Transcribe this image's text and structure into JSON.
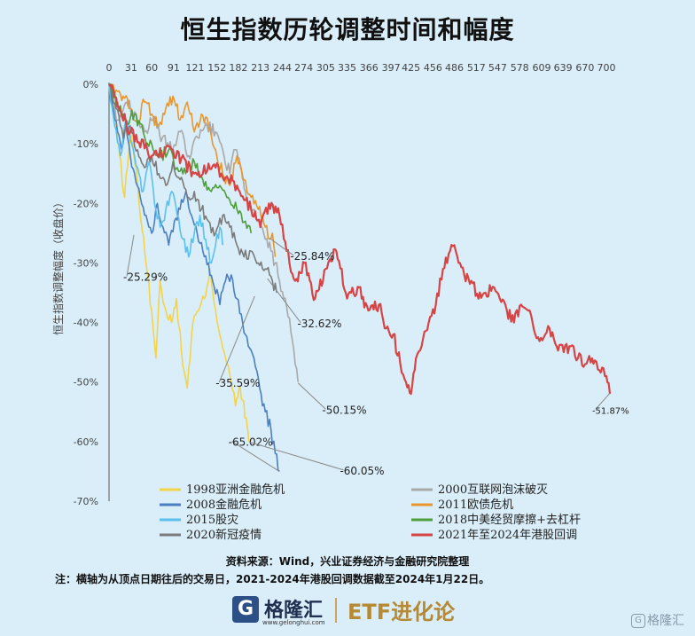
{
  "title": "恒生指数历轮调整时间和幅度",
  "source_text": "资料来源：Wind，兴业证券经济与金融研究院整理",
  "note_text": "注：横轴为从顶点日期往后的交易日，2021-2024年港股回调数据截至2024年1月22日。",
  "footer": {
    "logo_letter": "G",
    "logo_name": "格隆汇",
    "logo_url": "www.gelonghui.com",
    "brand": "ETF进化论",
    "watermark_icon": "G",
    "watermark": "格隆汇"
  },
  "chart_data": {
    "type": "line",
    "title": "恒生指数历轮调整时间和幅度",
    "xlabel": "",
    "ylabel": "恒生指数调整幅度（收盘价）",
    "x_ticks": [
      0,
      31,
      60,
      91,
      121,
      152,
      182,
      213,
      244,
      274,
      305,
      335,
      366,
      397,
      425,
      456,
      486,
      517,
      547,
      578,
      609,
      639,
      670,
      700
    ],
    "y_ticks": [
      0,
      -10,
      -20,
      -30,
      -40,
      -50,
      -60,
      -70
    ],
    "y_tick_labels": [
      "0%",
      "-10%",
      "-20%",
      "-30%",
      "-40%",
      "-50%",
      "-60%",
      "-70%"
    ],
    "xlim": [
      0,
      720
    ],
    "ylim": [
      -70,
      0
    ],
    "grid": false,
    "legend_position": "bottom",
    "series": [
      {
        "name": "1998亚洲金融危机",
        "color": "#f2d34a",
        "x": [
          0,
          8,
          15,
          22,
          30,
          38,
          45,
          52,
          60,
          66,
          72,
          80,
          88,
          95,
          102,
          110,
          118,
          126,
          134,
          142,
          150,
          158,
          166,
          172,
          178,
          183,
          188,
          193,
          197
        ],
        "y": [
          0,
          -5,
          -12,
          -19,
          -8,
          -14,
          -23,
          -30,
          -38,
          -46,
          -33,
          -38,
          -40,
          -36,
          -45,
          -51,
          -40,
          -38,
          -36,
          -31,
          -38,
          -43,
          -47,
          -50,
          -54,
          -51,
          -53,
          -56,
          -60
        ]
      },
      {
        "name": "2000互联网泡沫破灭",
        "color": "#a8a8a8",
        "x": [
          0,
          12,
          25,
          38,
          50,
          62,
          75,
          88,
          100,
          112,
          125,
          138,
          150,
          160,
          170,
          178,
          185,
          192,
          200,
          210,
          220,
          228,
          234,
          240,
          246,
          252,
          258,
          262,
          266
        ],
        "y": [
          0,
          -6,
          -3,
          -5,
          -8,
          -6,
          -9,
          -11,
          -8,
          -12,
          -9,
          -7,
          -8,
          -11,
          -15,
          -11,
          -14,
          -18,
          -21,
          -23,
          -26,
          -28,
          -30,
          -33,
          -36,
          -39,
          -43,
          -47,
          -50
        ]
      },
      {
        "name": "2008金融危机",
        "color": "#4a7fc1",
        "x": [
          0,
          6,
          12,
          18,
          24,
          30,
          36,
          44,
          52,
          60,
          68,
          76,
          84,
          92,
          100,
          108,
          116,
          124,
          132,
          140,
          148,
          156,
          164,
          172,
          180,
          188,
          196,
          204,
          212,
          220,
          228,
          234,
          240
        ],
        "y": [
          0,
          -4,
          -8,
          -11,
          -6,
          -12,
          -15,
          -19,
          -22,
          -25,
          -20,
          -24,
          -27,
          -23,
          -21,
          -18,
          -22,
          -25,
          -28,
          -30,
          -34,
          -37,
          -33,
          -32,
          -36,
          -40,
          -44,
          -46,
          -51,
          -55,
          -58,
          -62,
          -65
        ]
      },
      {
        "name": "2011欧债危机",
        "color": "#e8962d",
        "x": [
          0,
          10,
          20,
          30,
          40,
          50,
          60,
          70,
          80,
          90,
          100,
          110,
          120,
          130,
          140,
          150,
          160,
          170,
          180,
          190,
          200,
          210,
          220,
          226,
          230,
          234
        ],
        "y": [
          0,
          -1,
          -2,
          -4,
          -6,
          -3,
          -5,
          -7,
          -4,
          -2,
          -6,
          -3,
          -8,
          -5,
          -7,
          -11,
          -15,
          -17,
          -12,
          -16,
          -19,
          -21,
          -24,
          -26,
          -25,
          -29
        ]
      },
      {
        "name": "2015股灾",
        "color": "#5ac0ee",
        "x": [
          0,
          8,
          16,
          24,
          32,
          40,
          48,
          56,
          64,
          72,
          80,
          88,
          96,
          104,
          112,
          120,
          128,
          136,
          144,
          150,
          156,
          160
        ],
        "y": [
          0,
          -7,
          -12,
          -6,
          -10,
          -14,
          -18,
          -13,
          -20,
          -24,
          -21,
          -18,
          -22,
          -26,
          -29,
          -25,
          -22,
          -26,
          -30,
          -27,
          -24,
          -27
        ]
      },
      {
        "name": "2018中美经贸摩擦+去杠杆",
        "color": "#4e9e3a",
        "x": [
          0,
          12,
          24,
          36,
          48,
          60,
          72,
          84,
          96,
          108,
          120,
          132,
          144,
          156,
          168,
          180,
          192,
          200
        ],
        "y": [
          0,
          -3,
          -6,
          -5,
          -8,
          -10,
          -12,
          -11,
          -14,
          -15,
          -13,
          -16,
          -18,
          -17,
          -19,
          -21,
          -23,
          -25
        ]
      },
      {
        "name": "2020新冠疫情",
        "color": "#7a7a7a",
        "x": [
          0,
          10,
          20,
          30,
          40,
          50,
          60,
          70,
          80,
          90,
          100,
          110,
          120,
          130,
          140,
          150,
          160,
          170,
          180,
          190,
          200,
          210,
          220,
          230,
          236
        ],
        "y": [
          0,
          -4,
          -9,
          -7,
          -11,
          -14,
          -12,
          -15,
          -17,
          -13,
          -16,
          -19,
          -18,
          -21,
          -23,
          -25,
          -22,
          -24,
          -27,
          -29,
          -28,
          -30,
          -31,
          -33,
          -35
        ]
      },
      {
        "name": "2021年至2024年港股回调",
        "color": "#d64545",
        "x": [
          0,
          30,
          60,
          90,
          120,
          150,
          180,
          200,
          213,
          225,
          240,
          250,
          262,
          275,
          290,
          305,
          320,
          335,
          350,
          365,
          380,
          390,
          400,
          410,
          418,
          425,
          432,
          440,
          450,
          460,
          470,
          480,
          486,
          492,
          500,
          510,
          520,
          530,
          540,
          550,
          560,
          570,
          580,
          590,
          600,
          610,
          620,
          630,
          640,
          650,
          660,
          670,
          680,
          690,
          700,
          705
        ],
        "y": [
          0,
          -8,
          -12,
          -11,
          -15,
          -14,
          -17,
          -21,
          -24,
          -20,
          -22,
          -28,
          -33,
          -30,
          -36,
          -31,
          -28,
          -36,
          -34,
          -38,
          -37,
          -41,
          -42,
          -47,
          -50,
          -52,
          -46,
          -44,
          -40,
          -37,
          -31,
          -28,
          -27,
          -30,
          -32,
          -33,
          -36,
          -35,
          -34,
          -36,
          -38,
          -40,
          -37,
          -38,
          -42,
          -43,
          -41,
          -44,
          -45,
          -44,
          -46,
          -47,
          -46,
          -48,
          -49,
          -52
        ]
      }
    ],
    "annotations": [
      {
        "text": "-25.29%",
        "x": 35,
        "y": -25.29,
        "label_x": 20,
        "label_y": -33
      },
      {
        "text": "-25.84%",
        "x": 226,
        "y": -25.84,
        "label_x": 255,
        "label_y": -29.5
      },
      {
        "text": "-32.62%",
        "x": 223,
        "y": -32.62,
        "label_x": 265,
        "label_y": -40.8
      },
      {
        "text": "-35.59%",
        "x": 205,
        "y": -35.59,
        "label_x": 150,
        "label_y": -50.8
      },
      {
        "text": "-50.15%",
        "x": 266,
        "y": -50.15,
        "label_x": 300,
        "label_y": -55.3
      },
      {
        "text": "-65.02%",
        "x": 240,
        "y": -65.02,
        "label_x": 168,
        "label_y": -60.7
      },
      {
        "text": "-60.05%",
        "x": 197,
        "y": -60.05,
        "label_x": 325,
        "label_y": -65.5
      },
      {
        "text": "-51.87%",
        "x": 705,
        "y": -51.87,
        "label_x": 680,
        "label_y": -55.3
      }
    ]
  }
}
